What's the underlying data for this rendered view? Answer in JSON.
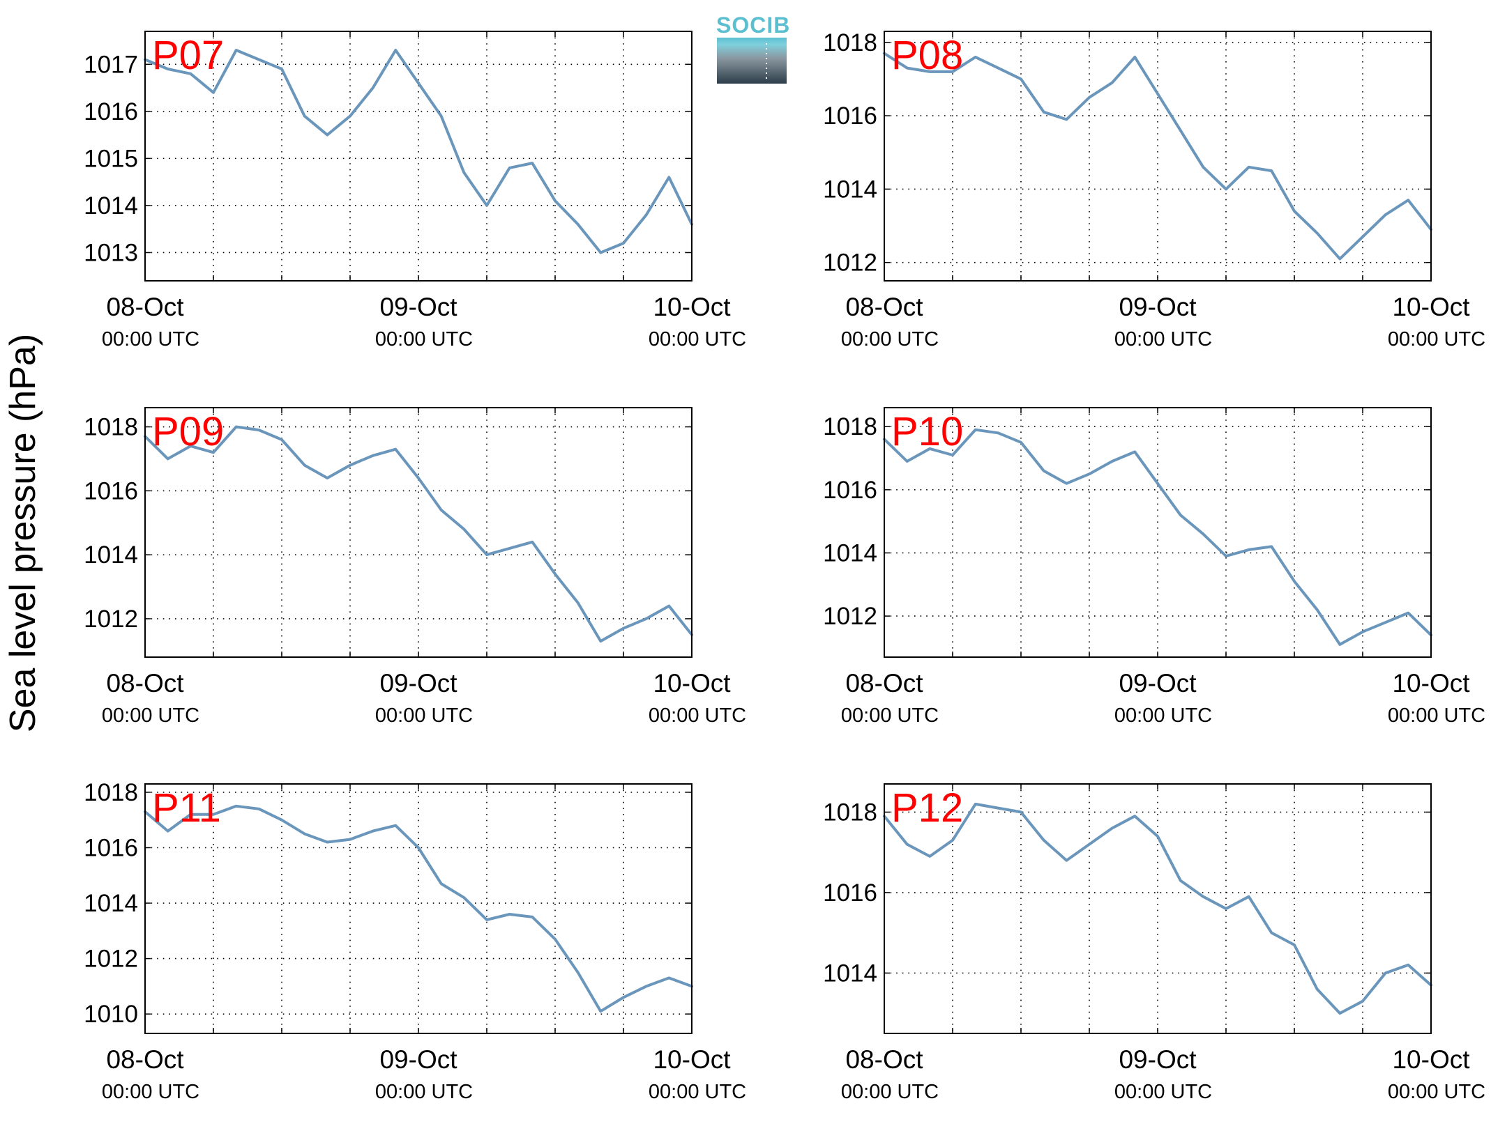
{
  "figure": {
    "ylabel": "Sea level pressure (hPa)",
    "logo_text": "SOCIB",
    "colors": {
      "line": "#6a96bb",
      "station_label": "#ff0000",
      "axes": "#000000",
      "logo_text": "#5cbfd0",
      "logo_top": "#5cbfd0",
      "logo_bottom": "#2c3e4a"
    }
  },
  "chart_data": [
    {
      "type": "line",
      "title": "P07",
      "xlabel": "",
      "ylabel": "Sea level pressure (hPa)",
      "xlim": [
        "08-Oct 00:00 UTC",
        "10-Oct 00:00 UTC"
      ],
      "ylim": [
        1012.4,
        1017.7
      ],
      "yticks": [
        1013,
        1014,
        1015,
        1016,
        1017
      ],
      "xticks": [
        {
          "main": "08-Oct",
          "sub": "00:00 UTC"
        },
        {
          "main": "09-Oct",
          "sub": "00:00 UTC"
        },
        {
          "main": "10-Oct",
          "sub": "00:00 UTC"
        }
      ],
      "grid": true,
      "series": [
        {
          "x_hours": [
            0,
            2,
            4,
            6,
            8,
            10,
            12,
            14,
            16,
            18,
            20,
            22,
            24,
            26,
            28,
            30,
            32,
            34,
            36,
            38,
            40,
            42,
            44,
            46,
            48
          ],
          "values": [
            1017.1,
            1016.9,
            1016.8,
            1016.4,
            1017.3,
            1017.1,
            1016.9,
            1015.9,
            1015.5,
            1015.9,
            1016.5,
            1017.3,
            1016.6,
            1015.9,
            1014.7,
            1014.0,
            1014.8,
            1014.9,
            1014.1,
            1013.6,
            1013.0,
            1013.2,
            1013.8,
            1014.6,
            1013.6
          ]
        }
      ]
    },
    {
      "type": "line",
      "title": "P08",
      "xlabel": "",
      "ylabel": "Sea level pressure (hPa)",
      "xlim": [
        "08-Oct 00:00 UTC",
        "10-Oct 00:00 UTC"
      ],
      "ylim": [
        1011.5,
        1018.3
      ],
      "yticks": [
        1012,
        1014,
        1016,
        1018
      ],
      "xticks": [
        {
          "main": "08-Oct",
          "sub": "00:00 UTC"
        },
        {
          "main": "09-Oct",
          "sub": "00:00 UTC"
        },
        {
          "main": "10-Oct",
          "sub": "00:00 UTC"
        }
      ],
      "grid": true,
      "series": [
        {
          "x_hours": [
            0,
            2,
            4,
            6,
            8,
            10,
            12,
            14,
            16,
            18,
            20,
            22,
            24,
            26,
            28,
            30,
            32,
            34,
            36,
            38,
            40,
            42,
            44,
            46,
            48
          ],
          "values": [
            1017.7,
            1017.3,
            1017.2,
            1017.2,
            1017.6,
            1017.3,
            1017.0,
            1016.1,
            1015.9,
            1016.5,
            1016.9,
            1017.6,
            1016.6,
            1015.6,
            1014.6,
            1014.0,
            1014.6,
            1014.5,
            1013.4,
            1012.8,
            1012.1,
            1012.7,
            1013.3,
            1013.7,
            1012.9
          ]
        }
      ]
    },
    {
      "type": "line",
      "title": "P09",
      "xlabel": "",
      "ylabel": "Sea level pressure (hPa)",
      "xlim": [
        "08-Oct 00:00 UTC",
        "10-Oct 00:00 UTC"
      ],
      "ylim": [
        1010.8,
        1018.6
      ],
      "yticks": [
        1012,
        1014,
        1016,
        1018
      ],
      "xticks": [
        {
          "main": "08-Oct",
          "sub": "00:00 UTC"
        },
        {
          "main": "09-Oct",
          "sub": "00:00 UTC"
        },
        {
          "main": "10-Oct",
          "sub": "00:00 UTC"
        }
      ],
      "grid": true,
      "series": [
        {
          "x_hours": [
            0,
            2,
            4,
            6,
            8,
            10,
            12,
            14,
            16,
            18,
            20,
            22,
            24,
            26,
            28,
            30,
            32,
            34,
            36,
            38,
            40,
            42,
            44,
            46,
            48
          ],
          "values": [
            1017.7,
            1017.0,
            1017.4,
            1017.2,
            1018.0,
            1017.9,
            1017.6,
            1016.8,
            1016.4,
            1016.8,
            1017.1,
            1017.3,
            1016.4,
            1015.4,
            1014.8,
            1014.0,
            1014.2,
            1014.4,
            1013.4,
            1012.5,
            1011.3,
            1011.7,
            1012.0,
            1012.4,
            1011.5
          ]
        }
      ]
    },
    {
      "type": "line",
      "title": "P10",
      "xlabel": "",
      "ylabel": "Sea level pressure (hPa)",
      "xlim": [
        "08-Oct 00:00 UTC",
        "10-Oct 00:00 UTC"
      ],
      "ylim": [
        1010.7,
        1018.6
      ],
      "yticks": [
        1012,
        1014,
        1016,
        1018
      ],
      "xticks": [
        {
          "main": "08-Oct",
          "sub": "00:00 UTC"
        },
        {
          "main": "09-Oct",
          "sub": "00:00 UTC"
        },
        {
          "main": "10-Oct",
          "sub": "00:00 UTC"
        }
      ],
      "grid": true,
      "series": [
        {
          "x_hours": [
            0,
            2,
            4,
            6,
            8,
            10,
            12,
            14,
            16,
            18,
            20,
            22,
            24,
            26,
            28,
            30,
            32,
            34,
            36,
            38,
            40,
            42,
            44,
            46,
            48
          ],
          "values": [
            1017.6,
            1016.9,
            1017.3,
            1017.1,
            1017.9,
            1017.8,
            1017.5,
            1016.6,
            1016.2,
            1016.5,
            1016.9,
            1017.2,
            1016.2,
            1015.2,
            1014.6,
            1013.9,
            1014.1,
            1014.2,
            1013.1,
            1012.2,
            1011.1,
            1011.5,
            1011.8,
            1012.1,
            1011.4
          ]
        }
      ]
    },
    {
      "type": "line",
      "title": "P11",
      "xlabel": "",
      "ylabel": "Sea level pressure (hPa)",
      "xlim": [
        "08-Oct 00:00 UTC",
        "10-Oct 00:00 UTC"
      ],
      "ylim": [
        1009.3,
        1018.3
      ],
      "yticks": [
        1010,
        1012,
        1014,
        1016,
        1018
      ],
      "xticks": [
        {
          "main": "08-Oct",
          "sub": "00:00 UTC"
        },
        {
          "main": "09-Oct",
          "sub": "00:00 UTC"
        },
        {
          "main": "10-Oct",
          "sub": "00:00 UTC"
        }
      ],
      "grid": true,
      "series": [
        {
          "x_hours": [
            0,
            2,
            4,
            6,
            8,
            10,
            12,
            14,
            16,
            18,
            20,
            22,
            24,
            26,
            28,
            30,
            32,
            34,
            36,
            38,
            40,
            42,
            44,
            46,
            48
          ],
          "values": [
            1017.3,
            1016.6,
            1017.2,
            1017.2,
            1017.5,
            1017.4,
            1017.0,
            1016.5,
            1016.2,
            1016.3,
            1016.6,
            1016.8,
            1016.0,
            1014.7,
            1014.2,
            1013.4,
            1013.6,
            1013.5,
            1012.7,
            1011.5,
            1010.1,
            1010.6,
            1011.0,
            1011.3,
            1011.0
          ]
        }
      ]
    },
    {
      "type": "line",
      "title": "P12",
      "xlabel": "",
      "ylabel": "Sea level pressure (hPa)",
      "xlim": [
        "08-Oct 00:00 UTC",
        "10-Oct 00:00 UTC"
      ],
      "ylim": [
        1012.5,
        1018.7
      ],
      "yticks": [
        1014,
        1016,
        1018
      ],
      "xticks": [
        {
          "main": "08-Oct",
          "sub": "00:00 UTC"
        },
        {
          "main": "09-Oct",
          "sub": "00:00 UTC"
        },
        {
          "main": "10-Oct",
          "sub": "00:00 UTC"
        }
      ],
      "grid": true,
      "series": [
        {
          "x_hours": [
            0,
            2,
            4,
            6,
            8,
            10,
            12,
            14,
            16,
            18,
            20,
            22,
            24,
            26,
            28,
            30,
            32,
            34,
            36,
            38,
            40,
            42,
            44,
            46,
            48
          ],
          "values": [
            1017.9,
            1017.2,
            1016.9,
            1017.3,
            1018.2,
            1018.1,
            1018.0,
            1017.3,
            1016.8,
            1017.2,
            1017.6,
            1017.9,
            1017.4,
            1016.3,
            1015.9,
            1015.6,
            1015.9,
            1015.0,
            1014.7,
            1013.6,
            1013.0,
            1013.3,
            1014.0,
            1014.2,
            1013.7
          ]
        }
      ]
    }
  ]
}
